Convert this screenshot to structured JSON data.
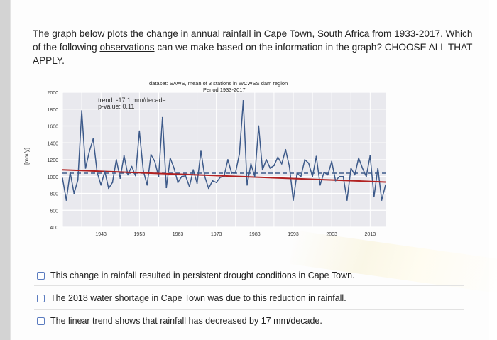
{
  "question": {
    "part1": "The graph below plots the change in annual rainfall in Cape Town, South Africa from 1933-2017. Which of the following ",
    "underlined": "observations",
    "part2": " can we make based on the information in the graph? CHOOSE ALL THAT APPLY."
  },
  "chart_data": {
    "type": "line",
    "title": "dataset: SAWS, mean of 3 stations in WCWSS dam region",
    "subtitle": "Period 1933-2017",
    "ylabel": "[mm/y]",
    "xlabel": "",
    "ylim": [
      400,
      2000
    ],
    "xlim": [
      1933,
      2017
    ],
    "yticks": [
      2000,
      1800,
      1600,
      1400,
      1200,
      1000,
      800,
      600,
      400
    ],
    "xticks": [
      1943,
      1953,
      1963,
      1973,
      1983,
      1993,
      2003,
      2013
    ],
    "grid": true,
    "trend_text": "trend: -17.1 mm/decade",
    "pvalue_text": "p-value: 0.11",
    "series": [
      {
        "x": [
          1933,
          1934,
          1935,
          1936,
          1937,
          1938,
          1939,
          1940,
          1941,
          1942,
          1943,
          1944,
          1945,
          1946,
          1947,
          1948,
          1949,
          1950,
          1951,
          1952,
          1953,
          1954,
          1955,
          1956,
          1957,
          1958,
          1959,
          1960,
          1961,
          1962,
          1963,
          1964,
          1965,
          1966,
          1967,
          1968,
          1969,
          1970,
          1971,
          1972,
          1973,
          1974,
          1975,
          1976,
          1977,
          1978,
          1979,
          1980,
          1981,
          1982,
          1983,
          1984,
          1985,
          1986,
          1987,
          1988,
          1989,
          1990,
          1991,
          1992,
          1993,
          1994,
          1995,
          1996,
          1997,
          1998,
          1999,
          2000,
          2001,
          2002,
          2003,
          2004,
          2005,
          2006,
          2007,
          2008,
          2009,
          2010,
          2011,
          2012,
          2013,
          2014,
          2015,
          2016,
          2017
        ],
        "y": [
          980,
          720,
          1050,
          800,
          960,
          1780,
          1100,
          1300,
          1450,
          1050,
          900,
          1060,
          860,
          930,
          1200,
          980,
          1250,
          1020,
          1120,
          1010,
          1540,
          1070,
          900,
          1260,
          1180,
          1000,
          1700,
          870,
          1220,
          1100,
          930,
          1000,
          1010,
          880,
          1080,
          920,
          1300,
          1000,
          860,
          950,
          930,
          990,
          1000,
          1200,
          1040,
          1050,
          1270,
          1900,
          900,
          1150,
          1000,
          1600,
          1080,
          1200,
          1100,
          1130,
          1230,
          1150,
          1320,
          1120,
          720,
          1040,
          1000,
          1200,
          1160,
          1000,
          1240,
          900,
          1050,
          1020,
          1180,
          950,
          1000,
          1000,
          720,
          1100,
          1020,
          1220,
          1100,
          1000,
          1250,
          760,
          1100,
          720,
          900
        ]
      }
    ],
    "trend_line": {
      "x": [
        1933,
        2017
      ],
      "y": [
        1080,
        935
      ]
    },
    "mean_line": {
      "x": [
        1933,
        2017
      ],
      "y": [
        1040,
        1040
      ]
    }
  },
  "options": [
    {
      "label": "This change in rainfall resulted in persistent drought conditions in Cape Town."
    },
    {
      "label": "The 2018 water shortage in Cape Town was due to this reduction in rainfall."
    },
    {
      "label": "The linear trend shows that rainfall has decreased by 17 mm/decade."
    }
  ],
  "colors": {
    "series": "#3d5a8a",
    "trend": "#b22222",
    "mean": "#3d5a8a",
    "checkbox_border": "#5a7bbf",
    "plot_bg": "#e9e9ee"
  }
}
